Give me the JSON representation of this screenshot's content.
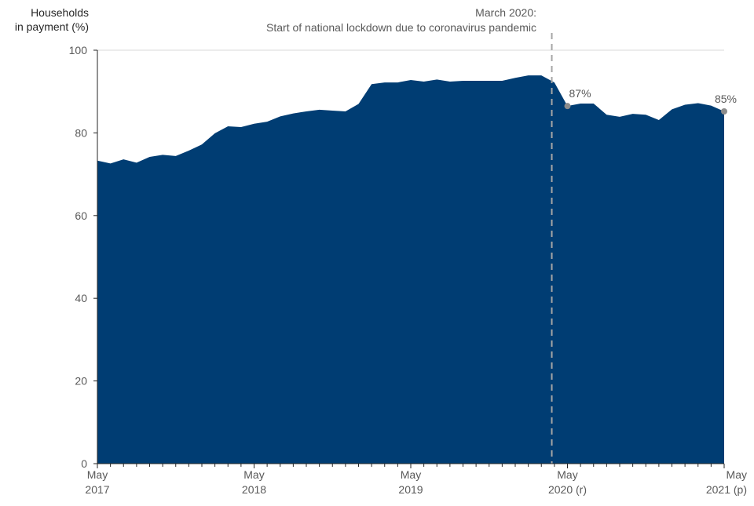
{
  "chart_data": {
    "type": "area",
    "ylabel_line1": "Households",
    "ylabel_line2": "in payment (%)",
    "ylim": [
      0,
      100
    ],
    "yticks": [
      0,
      20,
      40,
      60,
      80,
      100
    ],
    "grid": "horizontal at 100",
    "series": [
      {
        "name": "Households in payment (%)",
        "color": "#003d73",
        "values": [
          73.3,
          72.6,
          73.6,
          72.8,
          74.2,
          74.7,
          74.4,
          75.7,
          77.2,
          79.9,
          81.6,
          81.4,
          82.2,
          82.7,
          84.0,
          84.7,
          85.2,
          85.6,
          85.4,
          85.2,
          87.0,
          91.8,
          92.2,
          92.2,
          92.8,
          92.4,
          92.9,
          92.4,
          92.6,
          92.6,
          92.6,
          92.6,
          93.3,
          93.9,
          93.9,
          92.2,
          86.5,
          87.1,
          87.1,
          84.4,
          83.9,
          84.6,
          84.4,
          83.1,
          85.7,
          86.8,
          87.2,
          86.6,
          85.2
        ]
      }
    ],
    "x_ticks": [
      {
        "index": 0,
        "line1": "May",
        "line2": "2017"
      },
      {
        "index": 12,
        "line1": "May",
        "line2": "2018"
      },
      {
        "index": 24,
        "line1": "May",
        "line2": "2019"
      },
      {
        "index": 36,
        "line1": "May",
        "line2": "2020 (r)"
      },
      {
        "index": 48,
        "line1": "May",
        "line2": "2021 (p)"
      }
    ],
    "lockdown_marker": {
      "position_months": 34.8,
      "label_line1": "March 2020:",
      "label_line2": "Start of national lockdown due to coronavirus pandemic"
    },
    "point_labels": [
      {
        "index": 36,
        "label": "87%"
      },
      {
        "index": 48,
        "label": "85%"
      }
    ],
    "colors": {
      "area": "#003d73",
      "marker_dot": "#8c8c8c",
      "dashed_line": "#a6a6a6",
      "text": "#595959",
      "axis": "#262626",
      "grid": "#d9d9d9"
    }
  }
}
